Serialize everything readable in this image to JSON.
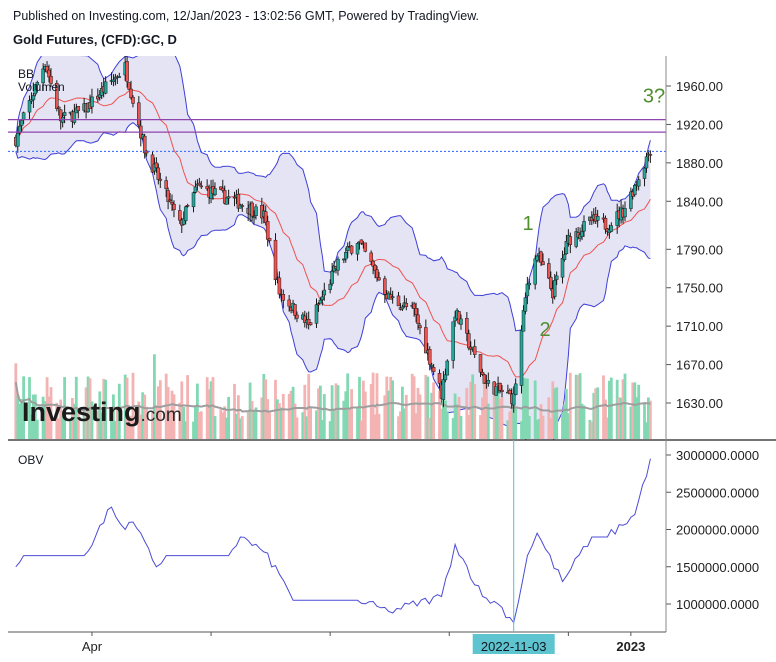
{
  "header": {
    "published": "Published on Investing.com, 12/Jan/2023 - 13:02:56 GMT, Powered by TradingView.",
    "instrument": "Gold Futures, (CFD):GC, D"
  },
  "logo": {
    "main": "Investing",
    "suffix": ".com"
  },
  "colors": {
    "up": "#26a69a",
    "down": "#ef5350",
    "bb_band": "#3f3fd8",
    "bb_fill": "#e4e4f4",
    "bb_basis": "#ef5350",
    "obv": "#4c4cd6",
    "resistance": "#8e44ad",
    "price_line": "#2962ff",
    "wave_labels": "#4f8f2f",
    "vol_up": "#81d8b2",
    "vol_down": "#f4b3b3",
    "vol_ma": "#9e9e9e"
  },
  "chart_data": [
    {
      "type": "candlestick",
      "title": "Gold Futures, (CFD):GC, D",
      "indicators": [
        "BB",
        "Volumen"
      ],
      "y_ticks": [
        "1960.00",
        "1920.00",
        "1880.00",
        "1840.00",
        "1790.00",
        "1750.00",
        "1710.00",
        "1670.00",
        "1630.00"
      ],
      "y_tick_values": [
        1960,
        1920,
        1880,
        1840,
        1790,
        1750,
        1710,
        1670,
        1630
      ],
      "ylim": [
        1600,
        1985
      ],
      "x_ticks": [
        "Apr",
        "2022-11-03",
        "2023"
      ],
      "horizontal_lines": [
        1925,
        1912
      ],
      "last_price_line": 1892,
      "wave_labels": [
        {
          "text": "1",
          "price": 1810
        },
        {
          "text": "2",
          "price": 1700
        },
        {
          "text": "3?",
          "price": 1943
        }
      ],
      "price_path": [
        {
          "date": "2022-02-21",
          "price": 1905
        },
        {
          "date": "2022-03-08",
          "price": 1985
        },
        {
          "date": "2022-03-16",
          "price": 1925
        },
        {
          "date": "2022-03-28",
          "price": 1935
        },
        {
          "date": "2022-04-18",
          "price": 1980
        },
        {
          "date": "2022-04-28",
          "price": 1895
        },
        {
          "date": "2022-05-16",
          "price": 1815
        },
        {
          "date": "2022-05-25",
          "price": 1855
        },
        {
          "date": "2022-06-14",
          "price": 1840
        },
        {
          "date": "2022-06-28",
          "price": 1825
        },
        {
          "date": "2022-07-06",
          "price": 1745
        },
        {
          "date": "2022-07-21",
          "price": 1710
        },
        {
          "date": "2022-08-05",
          "price": 1775
        },
        {
          "date": "2022-08-15",
          "price": 1800
        },
        {
          "date": "2022-08-31",
          "price": 1740
        },
        {
          "date": "2022-09-13",
          "price": 1725
        },
        {
          "date": "2022-09-27",
          "price": 1640
        },
        {
          "date": "2022-10-04",
          "price": 1725
        },
        {
          "date": "2022-10-20",
          "price": 1650
        },
        {
          "date": "2022-11-03",
          "price": 1635
        },
        {
          "date": "2022-11-10",
          "price": 1755
        },
        {
          "date": "2022-11-15",
          "price": 1785
        },
        {
          "date": "2022-11-23",
          "price": 1745
        },
        {
          "date": "2022-12-01",
          "price": 1800
        },
        {
          "date": "2022-12-13",
          "price": 1820
        },
        {
          "date": "2022-12-21",
          "price": 1815
        },
        {
          "date": "2022-12-29",
          "price": 1830
        },
        {
          "date": "2023-01-06",
          "price": 1865
        },
        {
          "date": "2023-01-12",
          "price": 1895
        }
      ]
    },
    {
      "type": "line",
      "title": "OBV",
      "y_ticks": [
        "3000000.0000",
        "2500000.0000",
        "2000000.0000",
        "1500000.0000",
        "1000000.0000"
      ],
      "y_tick_values": [
        3000000,
        2500000,
        2000000,
        1500000,
        1000000
      ],
      "ylim": [
        640000,
        3050000
      ],
      "series": [
        {
          "name": "OBV",
          "x": [
            "2022-02-21",
            "2022-02-25",
            "2022-03-18",
            "2022-03-28",
            "2022-04-11",
            "2022-04-18",
            "2022-04-22",
            "2022-05-04",
            "2022-05-09",
            "2022-06-10",
            "2022-06-16",
            "2022-06-28",
            "2022-07-06",
            "2022-07-13",
            "2022-08-15",
            "2022-08-31",
            "2022-09-27",
            "2022-10-04",
            "2022-10-18",
            "2022-10-26",
            "2022-11-03",
            "2022-11-10",
            "2022-11-15",
            "2022-11-28",
            "2022-12-13",
            "2022-12-21",
            "2023-01-04",
            "2023-01-12"
          ],
          "values": [
            1500000,
            1650000,
            1650000,
            1650000,
            2300000,
            2000000,
            2100000,
            1500000,
            1650000,
            1650000,
            1900000,
            1700000,
            1400000,
            1050000,
            1050000,
            900000,
            1100000,
            1800000,
            1100000,
            1000000,
            750000,
            1650000,
            1950000,
            1300000,
            1900000,
            1900000,
            2200000,
            2950000
          ]
        }
      ],
      "cursor_label": "2022-11-03"
    }
  ]
}
